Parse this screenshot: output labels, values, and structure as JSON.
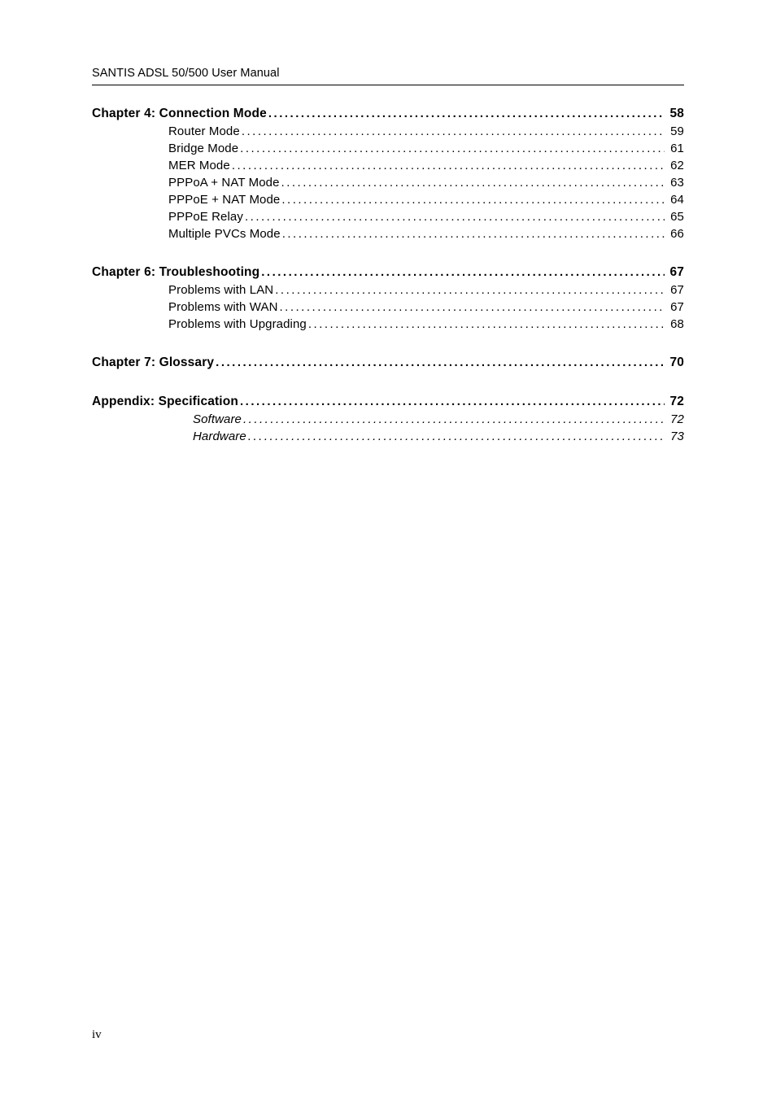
{
  "running_header": "SANTIS ADSL 50/500 User Manual",
  "page_number": "iv",
  "toc": [
    {
      "level": 1,
      "title": "Chapter 4: Connection Mode",
      "page": "58",
      "gap_before": false
    },
    {
      "level": 2,
      "title": "Router Mode",
      "page": "59",
      "gap_before": false
    },
    {
      "level": 2,
      "title": "Bridge Mode",
      "page": "61",
      "gap_before": false
    },
    {
      "level": 2,
      "title": "MER Mode",
      "page": "62",
      "gap_before": false
    },
    {
      "level": 2,
      "title": "PPPoA + NAT Mode",
      "page": "63",
      "gap_before": false
    },
    {
      "level": 2,
      "title": "PPPoE + NAT Mode",
      "page": "64",
      "gap_before": false
    },
    {
      "level": 2,
      "title": "PPPoE Relay",
      "page": "65",
      "gap_before": false
    },
    {
      "level": 2,
      "title": "Multiple PVCs Mode",
      "page": "66",
      "gap_before": false
    },
    {
      "level": 1,
      "title": "Chapter 6: Troubleshooting",
      "page": "67",
      "gap_before": true
    },
    {
      "level": 2,
      "title": "Problems with LAN",
      "page": "67",
      "gap_before": false
    },
    {
      "level": 2,
      "title": "Problems with WAN",
      "page": "67",
      "gap_before": false
    },
    {
      "level": 2,
      "title": "Problems with Upgrading",
      "page": "68",
      "gap_before": false
    },
    {
      "level": 1,
      "title": "Chapter 7: Glossary",
      "page": "70",
      "gap_before": true
    },
    {
      "level": 1,
      "title": "Appendix: Specification",
      "page": "72",
      "gap_before": true
    },
    {
      "level": 3,
      "title": "Software",
      "page": "72",
      "gap_before": false
    },
    {
      "level": 3,
      "title": "Hardware",
      "page": "73",
      "gap_before": false
    }
  ]
}
